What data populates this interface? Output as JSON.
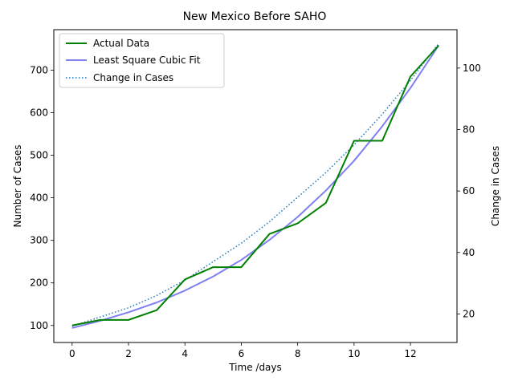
{
  "chart_data": {
    "type": "line",
    "title": "New Mexico Before SAHO",
    "xlabel": "Time /days",
    "ylabel": "Number of Cases",
    "y2label": "Change in Cases",
    "xlim": [
      -0.65,
      13.65
    ],
    "ylim": [
      60,
      795
    ],
    "y2lim": [
      10.7,
      112.5
    ],
    "xticks": [
      0,
      2,
      4,
      6,
      8,
      10,
      12
    ],
    "yticks": [
      100,
      200,
      300,
      400,
      500,
      600,
      700
    ],
    "y2ticks": [
      20,
      40,
      60,
      80,
      100
    ],
    "grid": false,
    "legend_position": "top-left",
    "series": [
      {
        "name": "Actual Data",
        "axis": "left",
        "style": "solid",
        "color": "#008000",
        "x": [
          0,
          1,
          2,
          3,
          4,
          5,
          6,
          7,
          8,
          9,
          10,
          11,
          12,
          13
        ],
        "values": [
          100,
          113,
          113,
          136,
          208,
          237,
          237,
          315,
          340,
          388,
          534,
          534,
          685,
          758
        ]
      },
      {
        "name": "Least Square Cubic Fit",
        "axis": "left",
        "style": "solid",
        "color": "#7f7ff2",
        "x": [
          0,
          1,
          2,
          3,
          4,
          5,
          6,
          7,
          8,
          9,
          10,
          11,
          12,
          13
        ],
        "values": [
          94,
          111,
          131,
          154,
          182,
          215,
          254,
          301,
          355,
          417,
          487,
          568,
          658,
          758
        ]
      },
      {
        "name": "Change in Cases",
        "axis": "right",
        "style": "dotted",
        "color": "#1f77b4",
        "x": [
          0,
          1,
          2,
          3,
          4,
          5,
          6,
          7,
          8,
          9,
          10,
          11,
          12,
          13
        ],
        "values": [
          16,
          19,
          22,
          26,
          31,
          37,
          43,
          50,
          58,
          66,
          75,
          85,
          96,
          108
        ]
      }
    ]
  }
}
